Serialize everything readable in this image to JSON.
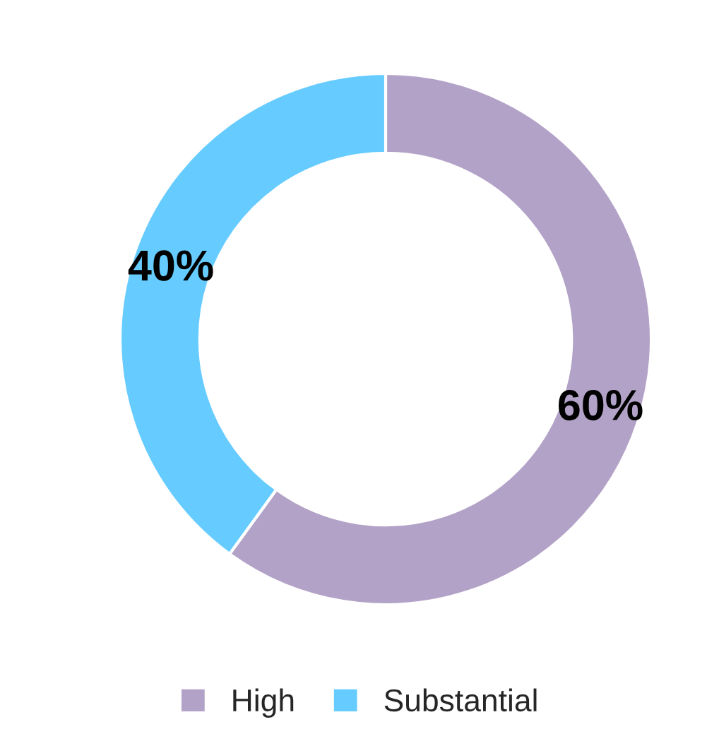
{
  "chart_data": {
    "type": "donut",
    "categories": [
      "High",
      "Substantial"
    ],
    "values": [
      60,
      40
    ],
    "colors": [
      "#b3a2c7",
      "#66ccff"
    ],
    "value_labels": [
      "60%",
      "40%"
    ],
    "legend": "bottom"
  }
}
